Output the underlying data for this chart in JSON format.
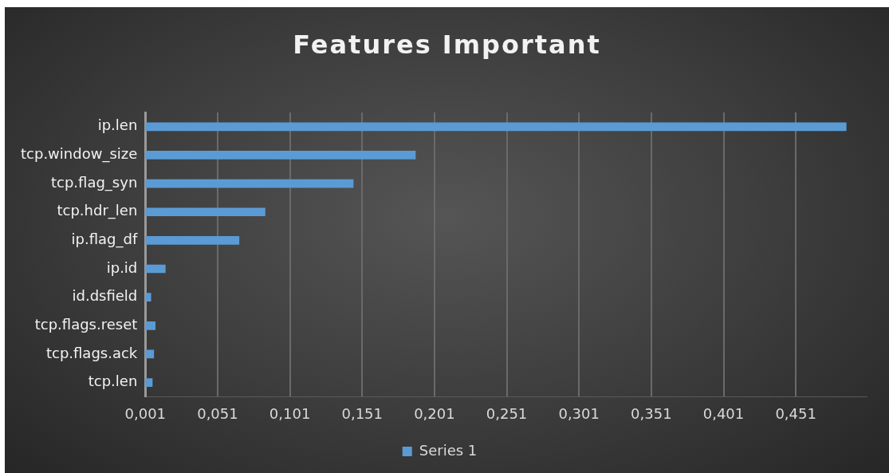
{
  "chart_data": {
    "type": "bar",
    "orientation": "horizontal",
    "title": "Features Important",
    "categories": [
      "ip.len",
      "tcp.window_size",
      "tcp.flag_syn",
      "tcp.hdr_len",
      "ip.flag_df",
      "ip.id",
      "id.dsfield",
      "tcp.flags.reset",
      "tcp.flags.ack",
      "tcp.len"
    ],
    "series": [
      {
        "name": "Series 1",
        "color": "#5b9bd5",
        "values": [
          0.486,
          0.188,
          0.145,
          0.084,
          0.066,
          0.015,
          0.005,
          0.008,
          0.007,
          0.006
        ]
      }
    ],
    "xlim": [
      0.001,
      0.5
    ],
    "xticks": [
      {
        "value": 0.001,
        "label": "0,001"
      },
      {
        "value": 0.051,
        "label": "0,051"
      },
      {
        "value": 0.101,
        "label": "0,101"
      },
      {
        "value": 0.151,
        "label": "0,151"
      },
      {
        "value": 0.201,
        "label": "0,201"
      },
      {
        "value": 0.251,
        "label": "0,251"
      },
      {
        "value": 0.301,
        "label": "0,301"
      },
      {
        "value": 0.351,
        "label": "0,351"
      },
      {
        "value": 0.401,
        "label": "0,401"
      },
      {
        "value": 0.451,
        "label": "0,451"
      }
    ],
    "grid": "x",
    "legend": "bottom"
  }
}
